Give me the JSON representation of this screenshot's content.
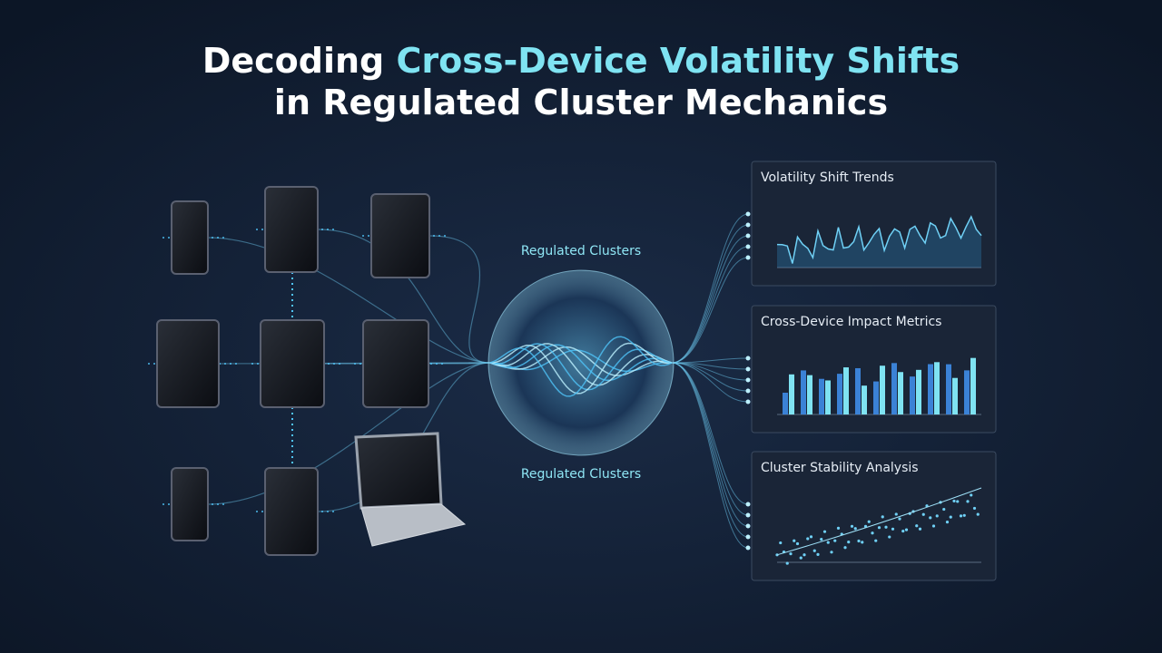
{
  "header": {
    "title_prefix": "Decoding",
    "title_highlight": "Cross-Device Volatility Shifts",
    "title_line2": "in Regulated Cluster Mechanics"
  },
  "hub": {
    "label_top": "Regulated Clusters",
    "label_bottom": "Regulated Clusters"
  },
  "panels": [
    {
      "title": "Volatility Shift Trends"
    },
    {
      "title": "Cross-Device Impact Metrics"
    },
    {
      "title": "Cluster Stability Analysis"
    }
  ]
}
